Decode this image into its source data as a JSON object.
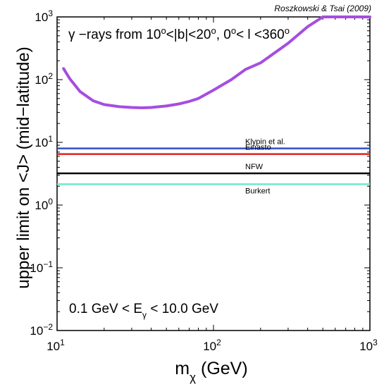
{
  "chart_data": {
    "type": "line",
    "credit": "Roszkowski & Tsai (2009)",
    "title": {
      "prefix": "γ −rays from 10",
      "sup1": "o",
      "mid1": "<|b|<20",
      "sup2": "o",
      "mid2": ", 0",
      "sup3": "o",
      "mid3": "< l <360",
      "sup4": "o"
    },
    "energy_range": {
      "left": "0.1 GeV < E",
      "sub": "γ",
      "right": " < 10.0 GeV"
    },
    "xlabel": {
      "main": "m",
      "sub": "χ",
      "unit": " (GeV)"
    },
    "ylabel": "upper limit on <J> (mid−latitude)",
    "xscale": "log",
    "yscale": "log",
    "xlim": [
      10,
      1000
    ],
    "ylim": [
      0.01,
      1000
    ],
    "x_ticks": [
      {
        "base": "10",
        "exp": "1"
      },
      {
        "base": "10",
        "exp": "2"
      },
      {
        "base": "10",
        "exp": "3"
      }
    ],
    "y_ticks": [
      {
        "base": "10",
        "exp": "−2"
      },
      {
        "base": "10",
        "exp": "−1"
      },
      {
        "base": "10",
        "exp": "0"
      },
      {
        "base": "10",
        "exp": "1"
      },
      {
        "base": "10",
        "exp": "2"
      },
      {
        "base": "10",
        "exp": "3"
      }
    ],
    "limit_curve": {
      "color": "#a64de0",
      "x": [
        11,
        12,
        14,
        17,
        20,
        25,
        30,
        35,
        40,
        50,
        60,
        70,
        80,
        100,
        130,
        160,
        200,
        300,
        400,
        500,
        1000
      ],
      "y": [
        150,
        105,
        65,
        46,
        40,
        37,
        36,
        35.5,
        36,
        38,
        41,
        45,
        50,
        68,
        100,
        145,
        185,
        380,
        700,
        1000,
        1000
      ]
    },
    "series": [
      {
        "name": "Klypin et al.",
        "value": 8.0,
        "color": "#3050c8"
      },
      {
        "name": "Einasto",
        "value": 6.5,
        "color": "#e02020"
      },
      {
        "name": "NFW",
        "value": 3.2,
        "color": "#000000"
      },
      {
        "name": "Burkert",
        "value": 2.15,
        "color": "#6ee8cc"
      }
    ]
  }
}
